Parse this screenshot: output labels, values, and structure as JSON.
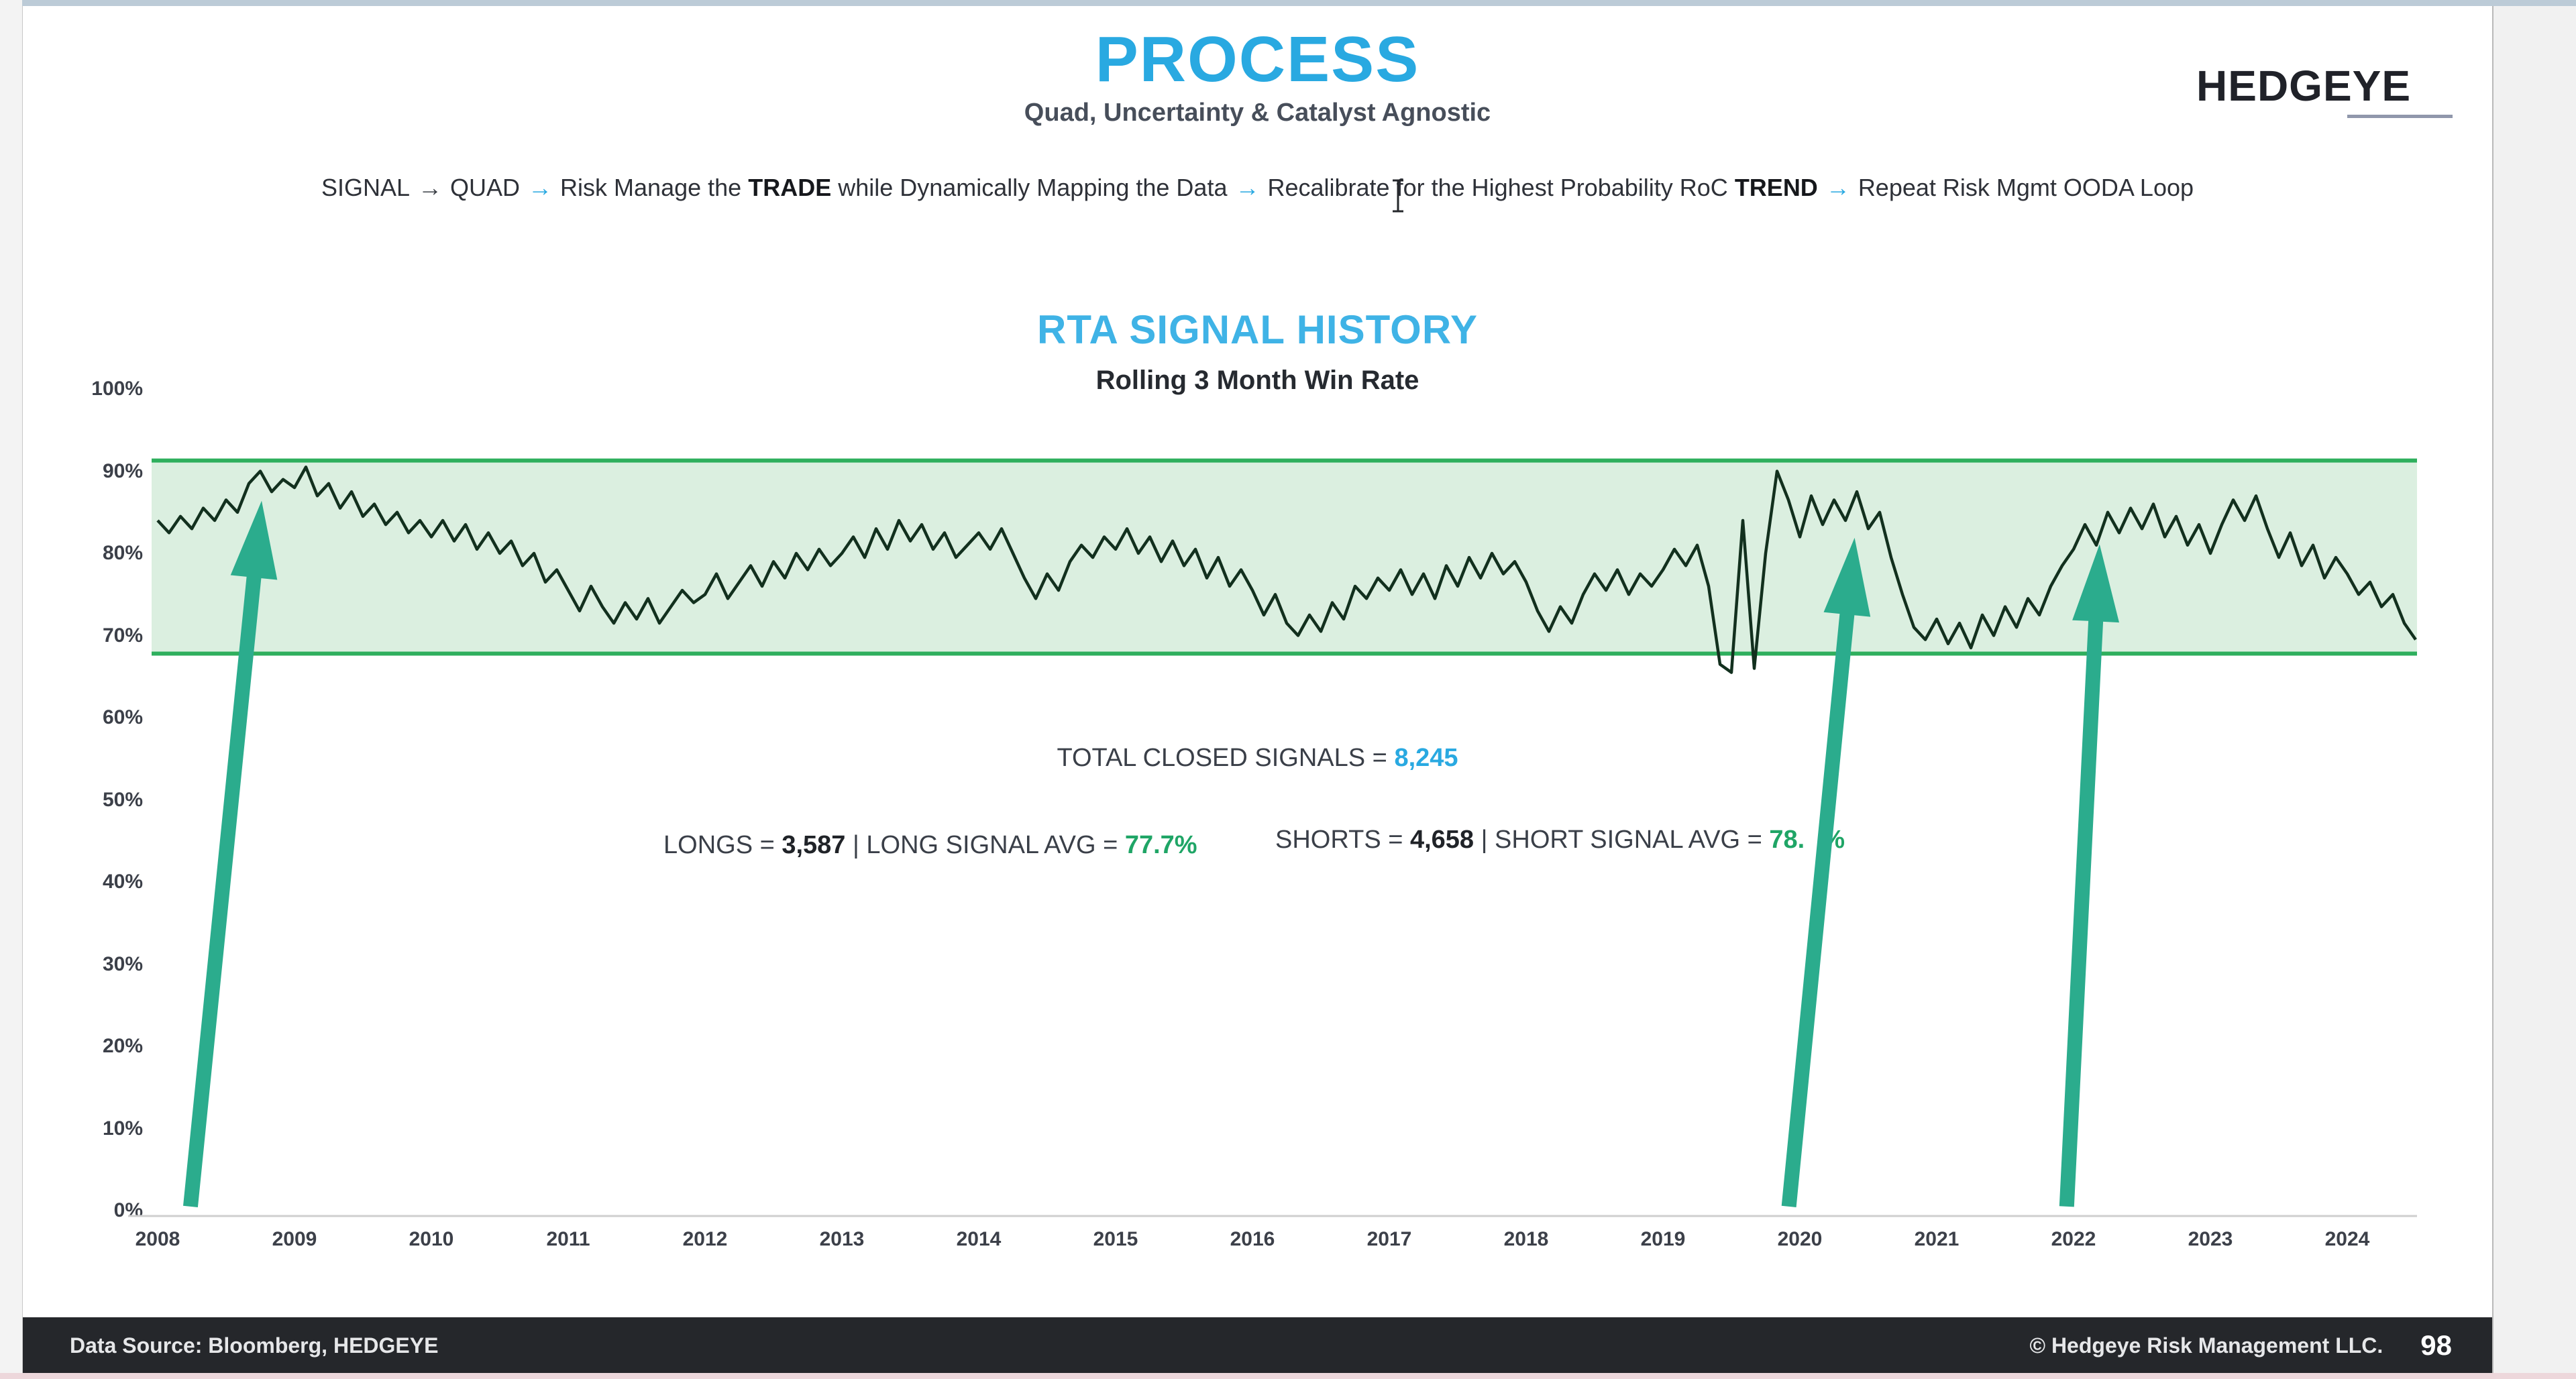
{
  "header": {
    "title": "PROCESS",
    "subtitle": "Quad, Uncertainty & Catalyst Agnostic"
  },
  "brand": {
    "name": "HEDGEYE"
  },
  "process": {
    "segments": [
      {
        "t": "SIGNAL",
        "s": "plain"
      },
      {
        "t": "→",
        "s": "arrow-dark"
      },
      {
        "t": "QUAD",
        "s": "plain"
      },
      {
        "t": "→",
        "s": "arrow-blue"
      },
      {
        "t": "Risk Manage the ",
        "s": "plain"
      },
      {
        "t": "TRADE",
        "s": "bold"
      },
      {
        "t": " while Dynamically Mapping the Data",
        "s": "plain"
      },
      {
        "t": "→",
        "s": "arrow-blue"
      },
      {
        "t": "Recalibrate for the Highest Probability RoC ",
        "s": "plain"
      },
      {
        "t": "TREND",
        "s": "bold"
      },
      {
        "t": "→",
        "s": "arrow-blue"
      },
      {
        "t": "Repeat Risk Mgmt OODA Loop",
        "s": "plain"
      }
    ]
  },
  "stats": {
    "total_label": "TOTAL CLOSED SIGNALS = ",
    "total_value": "8,245",
    "longs": {
      "prefix": "LONGS = ",
      "value": "3,587",
      "mid": " | LONG SIGNAL AVG = ",
      "avg": "77.7%"
    },
    "shorts": {
      "prefix": "SHORTS = ",
      "value": "4,658",
      "mid": " | SHORT SIGNAL AVG = ",
      "avg_prefix": "78.",
      "avg_suffix": "%"
    }
  },
  "footer": {
    "source": "Data Source: Bloomberg, HEDGEYE",
    "copyright": "© Hedgeye Risk Management LLC.",
    "page": "98"
  },
  "icons": {
    "cursor": "text-cursor-icon"
  },
  "colors": {
    "accent_blue": "#29a9e1",
    "band_fill": "#dbefe0",
    "band_line": "#2eaf5d",
    "series_line": "#12301e",
    "arrow_teal": "#2bac8d",
    "footer_bg": "#25272b"
  },
  "chart_data": {
    "type": "line",
    "title": "RTA SIGNAL HISTORY",
    "subtitle": "Rolling 3 Month Win Rate",
    "xlabel": "",
    "ylabel": "",
    "ylim": [
      0,
      100
    ],
    "x_range": [
      2008,
      2024.5
    ],
    "grid": false,
    "legend": "none",
    "yticks": [
      "100%",
      "90%",
      "80%",
      "70%",
      "60%",
      "50%",
      "40%",
      "30%",
      "20%",
      "10%",
      "0%"
    ],
    "xticks": [
      "2008",
      "2009",
      "2010",
      "2011",
      "2012",
      "2013",
      "2014",
      "2015",
      "2016",
      "2017",
      "2018",
      "2019",
      "2020",
      "2021",
      "2022",
      "2023",
      "2024"
    ],
    "band": {
      "upper": 91.3,
      "lower": 67.8
    },
    "x_start": 2008.0,
    "x_step_months": 1,
    "series": [
      {
        "name": "Rolling 3 Month Win Rate",
        "values": [
          84,
          82.5,
          84.5,
          83,
          85.5,
          84,
          86.5,
          85,
          88.5,
          90,
          87.5,
          89,
          88,
          90.5,
          87,
          88.5,
          85.5,
          87.5,
          84.5,
          86,
          83.5,
          85,
          82.5,
          84,
          82,
          84,
          81.5,
          83.5,
          80.5,
          82.5,
          80,
          81.5,
          78.5,
          80,
          76.5,
          78,
          75.5,
          73,
          76,
          73.5,
          71.5,
          74,
          72,
          74.5,
          71.5,
          73.5,
          75.5,
          74,
          75,
          77.5,
          74.5,
          76.5,
          78.5,
          76,
          79,
          77,
          80,
          78,
          80.5,
          78.5,
          80,
          82,
          79.5,
          83,
          80.5,
          84,
          81.5,
          83.5,
          80.5,
          82.5,
          79.5,
          81,
          82.5,
          80.5,
          83,
          80,
          77,
          74.5,
          77.5,
          75.5,
          79,
          81,
          79.5,
          82,
          80.5,
          83,
          80,
          82,
          79,
          81.5,
          78.5,
          80.5,
          77,
          79.5,
          76,
          78,
          75.5,
          72.5,
          75,
          71.5,
          70,
          72.5,
          70.5,
          74,
          72,
          76,
          74.5,
          77,
          75.5,
          78,
          75,
          77.5,
          74.5,
          78.5,
          76,
          79.5,
          77,
          80,
          77.5,
          79,
          76.5,
          73,
          70.5,
          73.5,
          71.5,
          75,
          77.5,
          75.5,
          78,
          75,
          77.5,
          76,
          78,
          80.5,
          78.5,
          81,
          76,
          66.5,
          65.5,
          84,
          66,
          80,
          90,
          86.5,
          82,
          87,
          83.5,
          86.5,
          84,
          87.5,
          83,
          85,
          79.5,
          75,
          71,
          69.5,
          72,
          69,
          71.5,
          68.5,
          72.5,
          70,
          73.5,
          71,
          74.5,
          72.5,
          76,
          78.5,
          80.5,
          83.5,
          81,
          85,
          82.5,
          85.5,
          83,
          86,
          82,
          84.5,
          81,
          83.5,
          80,
          83.5,
          86.5,
          84,
          87,
          83,
          79.5,
          82.5,
          78.5,
          81,
          77,
          79.5,
          77.5,
          75,
          76.5,
          73.5,
          75,
          71.5,
          69.5
        ]
      }
    ],
    "annotations": [
      {
        "type": "arrow",
        "x_base": 2008.24,
        "x_tip": 2008.76,
        "tip_pct": 86.4
      },
      {
        "type": "arrow",
        "x_base": 2019.92,
        "x_tip": 2020.4,
        "tip_pct": 81.9
      },
      {
        "type": "arrow",
        "x_base": 2021.95,
        "x_tip": 2022.19,
        "tip_pct": 81.1
      }
    ]
  }
}
